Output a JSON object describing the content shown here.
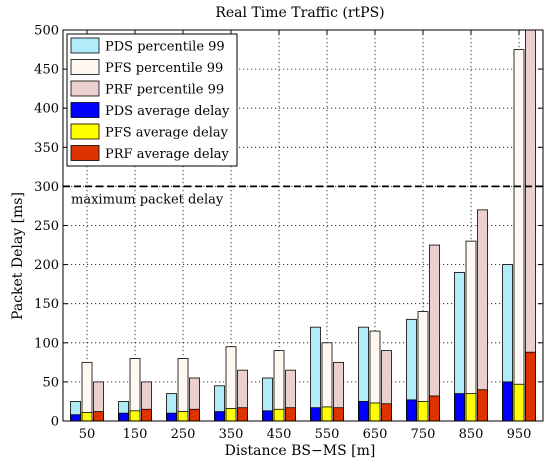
{
  "chart_data": {
    "type": "bar",
    "title": "Real Time Traffic (rtPS)",
    "xlabel": "Distance BS−MS [m]",
    "ylabel": "Packet Delay [ms]",
    "ylim": [
      0,
      500
    ],
    "yticks": [
      0,
      50,
      100,
      150,
      200,
      250,
      300,
      350,
      400,
      450,
      500
    ],
    "categories": [
      "50",
      "150",
      "250",
      "350",
      "450",
      "550",
      "650",
      "750",
      "850",
      "950"
    ],
    "grid": true,
    "legend_position": "top-left",
    "series": [
      {
        "name": "PDS percentile 99",
        "color": "#b3ecf9",
        "values": [
          25,
          25,
          35,
          45,
          55,
          120,
          120,
          130,
          190,
          200
        ]
      },
      {
        "name": "PFS percentile 99",
        "color": "#fff8f0",
        "values": [
          75,
          80,
          80,
          95,
          90,
          100,
          115,
          140,
          230,
          475
        ]
      },
      {
        "name": "PRF percentile 99",
        "color": "#ecd0d0",
        "values": [
          50,
          50,
          55,
          65,
          65,
          75,
          90,
          225,
          270,
          500
        ]
      },
      {
        "name": "PDS average delay",
        "color": "#0000ff",
        "values": [
          8,
          10,
          10,
          12,
          13,
          17,
          25,
          27,
          35,
          50
        ]
      },
      {
        "name": "PFS average delay",
        "color": "#ffff00",
        "values": [
          11,
          13,
          12,
          16,
          15,
          18,
          23,
          25,
          35,
          47
        ]
      },
      {
        "name": "PRF average delay",
        "color": "#dd3300",
        "values": [
          12,
          15,
          15,
          17,
          17,
          17,
          22,
          32,
          40,
          88
        ]
      }
    ],
    "annotations": [
      {
        "text": "maximum packet delay",
        "y": 300,
        "style": "dashed-line"
      }
    ]
  }
}
